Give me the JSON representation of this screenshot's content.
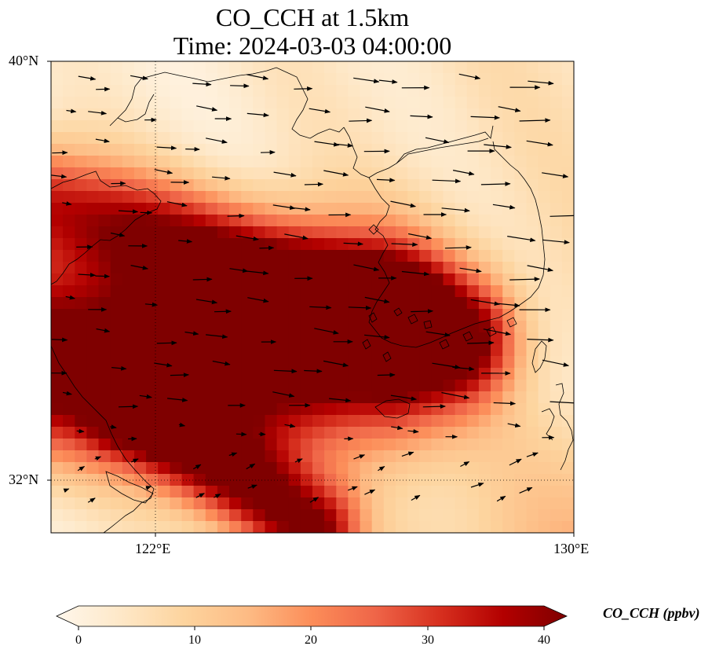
{
  "title": {
    "line1": "CO_CCH at 1.5km",
    "line2": "Time: 2024-03-03 04:00:00"
  },
  "map": {
    "lon_range": [
      118,
      130
    ],
    "lat_range": [
      30.8,
      40
    ],
    "lat_ticks": [
      {
        "value": 40,
        "label": "40°N"
      },
      {
        "value": 32,
        "label": "32°N"
      }
    ],
    "lon_ticks": [
      {
        "value": 122,
        "label": "122°E"
      },
      {
        "value": 130,
        "label": "130°E"
      }
    ],
    "gridlines": {
      "lon": 122,
      "lat": 32,
      "style": "dotted"
    },
    "field_description_plumes": [
      {
        "axis": [
          [
            118,
            34.2
          ],
          [
            125.5,
            34.5
          ]
        ],
        "width_deg": 2.2,
        "peak_ppbv": 45
      },
      {
        "axis": [
          [
            118,
            37.2
          ],
          [
            127.5,
            34.6
          ]
        ],
        "width_deg": 1.4,
        "peak_ppbv": 30
      },
      {
        "axis": [
          [
            120,
            33.3
          ],
          [
            124,
            30.8
          ]
        ],
        "width_deg": 1.2,
        "peak_ppbv": 36
      }
    ],
    "wind_direction": "westerly"
  },
  "colorbar": {
    "label": "CO_CCH (ppbv)",
    "min": 0,
    "max": 40,
    "ticks": [
      "0",
      "10",
      "20",
      "30",
      "40"
    ],
    "colormap": [
      "#fff7ec",
      "#fee8c8",
      "#fdd49e",
      "#fdbb84",
      "#fc8d59",
      "#ef6548",
      "#d7301f",
      "#b30000",
      "#7f0000"
    ],
    "extend": "both"
  }
}
